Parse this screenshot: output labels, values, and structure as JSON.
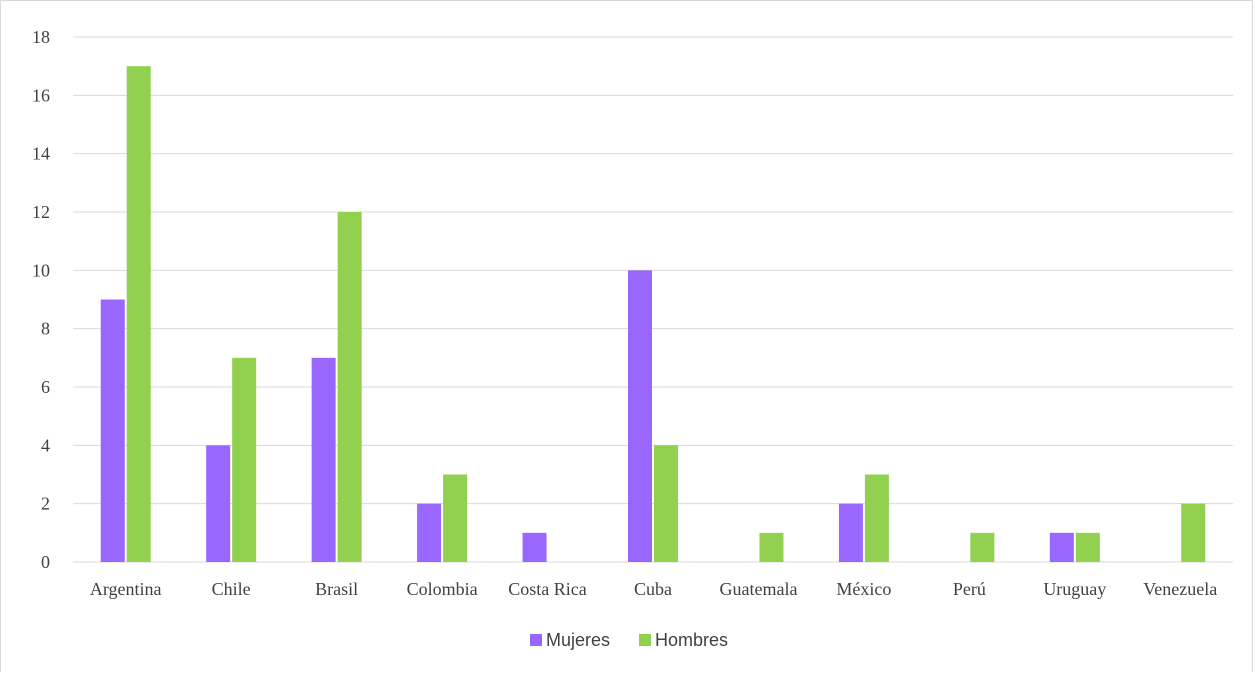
{
  "colors": {
    "mujeres": "#9966ff",
    "hombres": "#92d050",
    "grid": "#d9d9d9",
    "text": "#404040"
  },
  "chart_data": {
    "type": "bar",
    "title": "",
    "xlabel": "",
    "ylabel": "",
    "ylim": [
      0,
      18
    ],
    "yticks": [
      0,
      2,
      4,
      6,
      8,
      10,
      12,
      14,
      16,
      18
    ],
    "grid": true,
    "legend_position": "bottom",
    "categories": [
      "Argentina",
      "Chile",
      "Brasil",
      "Colombia",
      "Costa Rica",
      "Cuba",
      "Guatemala",
      "México",
      "Perú",
      "Uruguay",
      "Venezuela"
    ],
    "series": [
      {
        "name": "Mujeres",
        "color": "#9966ff",
        "values": [
          9,
          4,
          7,
          2,
          1,
          10,
          0,
          2,
          0,
          1,
          0
        ]
      },
      {
        "name": "Hombres",
        "color": "#92d050",
        "values": [
          17,
          7,
          12,
          3,
          0,
          4,
          1,
          3,
          1,
          1,
          2
        ]
      }
    ]
  }
}
